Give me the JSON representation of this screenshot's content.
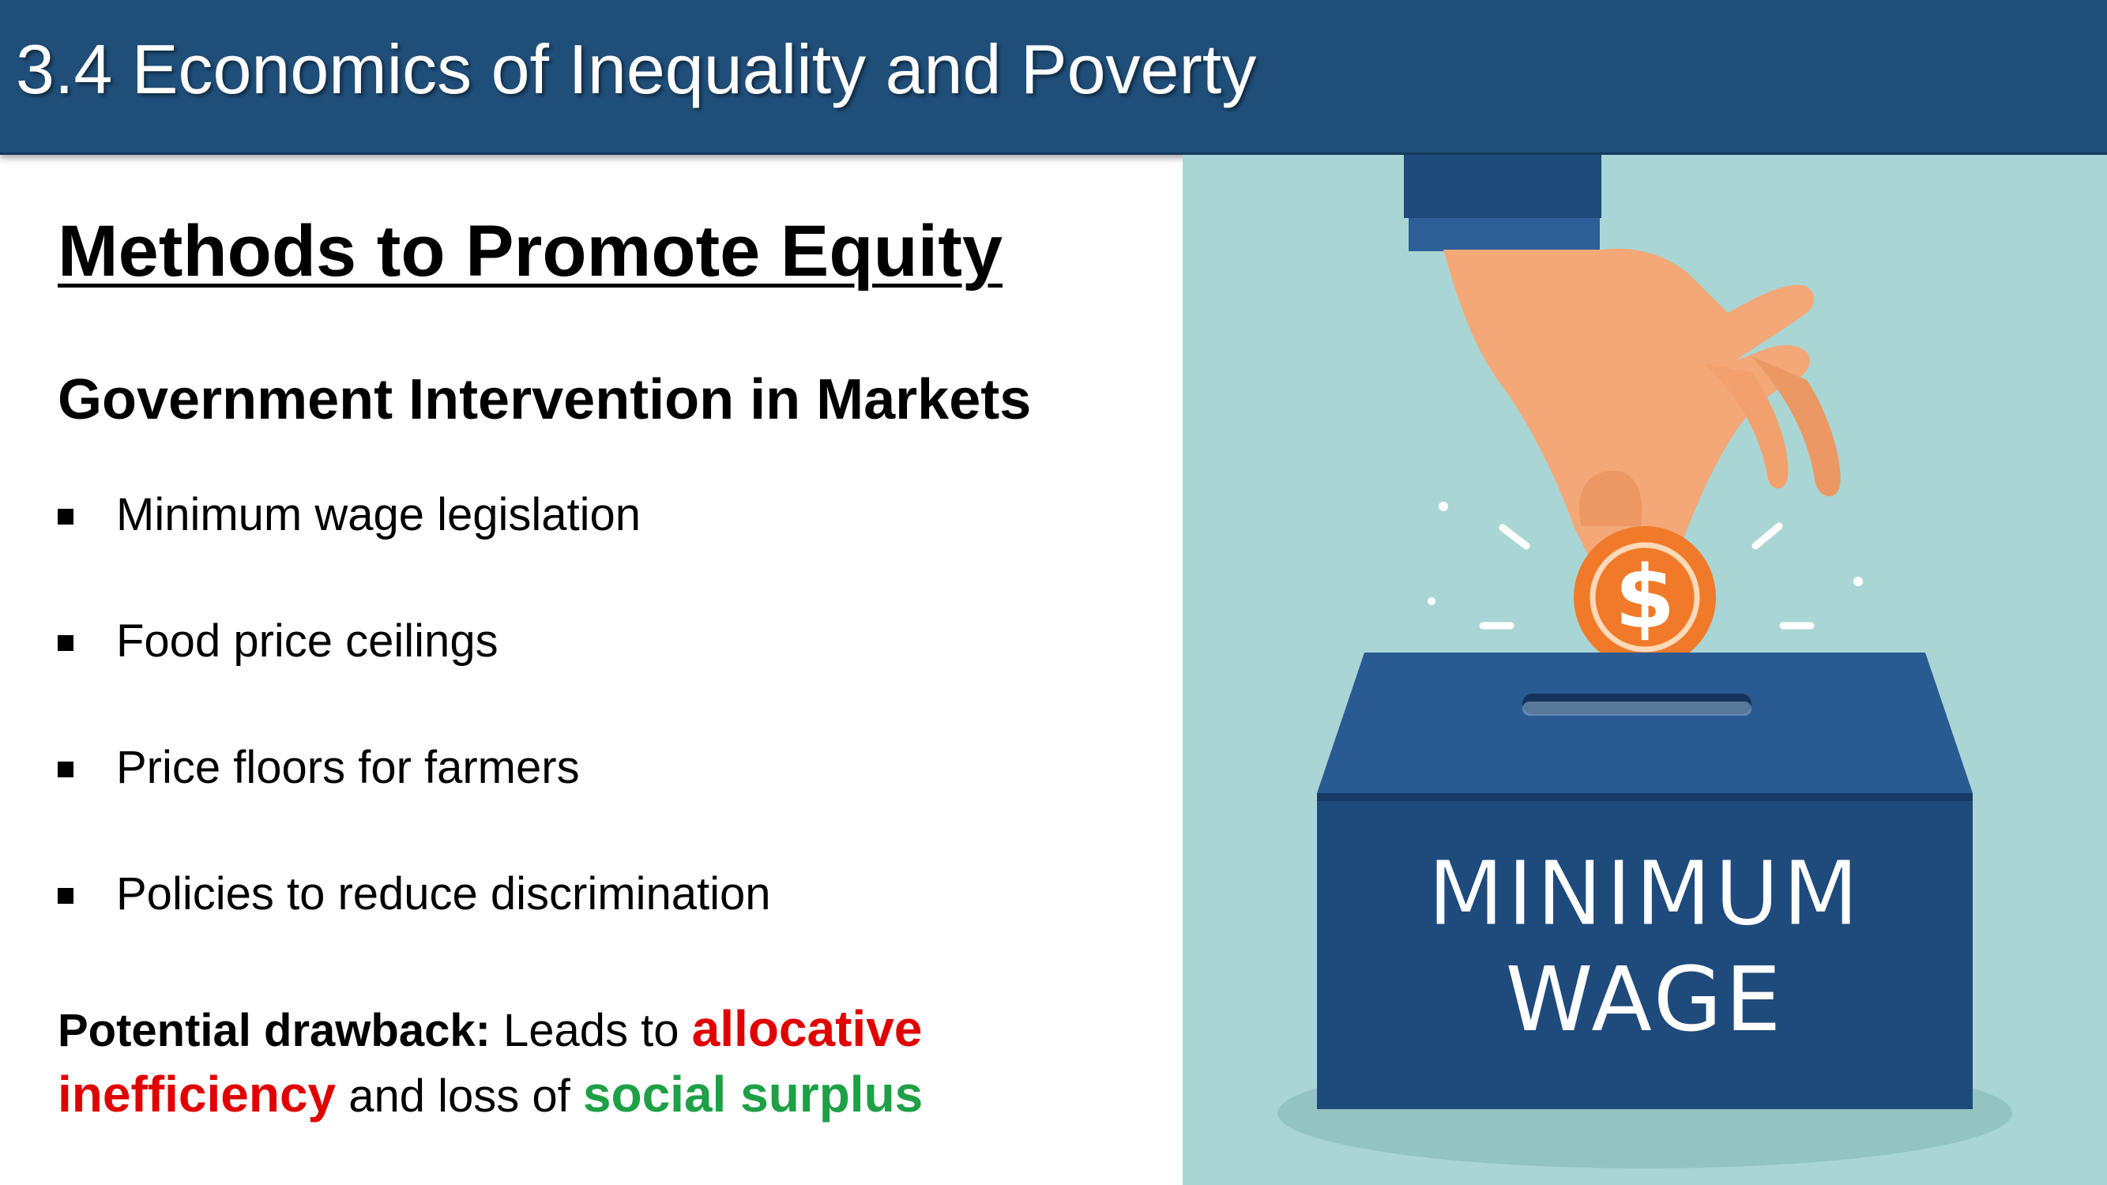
{
  "header": {
    "title": "3.4 Economics of Inequality and Poverty"
  },
  "content": {
    "heading": "Methods to Promote Equity",
    "subheading": "Government Intervention in Markets",
    "bullets": [
      "Minimum wage legislation",
      "Food price ceilings",
      "Price floors for farmers",
      "Policies to reduce discrimination"
    ],
    "drawback": {
      "label": "Potential drawback:",
      "text1": " Leads to ",
      "highlight1": "allocative inefficiency",
      "text2": " and loss of ",
      "highlight2": "social surplus"
    }
  },
  "illustration": {
    "box_line1": "MINIMUM",
    "box_line2": "WAGE",
    "coin_symbol": "$",
    "colors": {
      "background": "#a9d6d4",
      "box": "#1f4a7c",
      "coin": "#f07a2a",
      "hand": "#f4a777"
    }
  },
  "colors": {
    "header": "#1f4e79",
    "accent_red": "#e00000",
    "accent_green": "#1ea046"
  }
}
